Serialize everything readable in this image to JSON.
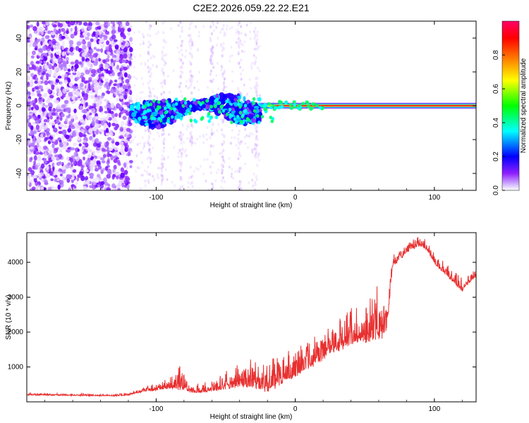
{
  "title": "C2E2.2026.059.22.22.E21",
  "chart_data": [
    {
      "type": "heatmap",
      "xlabel": "Height of straight line (km)",
      "ylabel": "Frequency (Hz)",
      "xlim": [
        -193,
        130
      ],
      "ylim": [
        -50,
        50
      ],
      "xticks": [
        -100,
        0,
        100
      ],
      "xtick_labels": [
        "-100",
        "0",
        "100"
      ],
      "yticks": [
        -40,
        -20,
        0,
        20,
        40
      ],
      "ytick_labels": [
        "-40",
        "-20",
        "0",
        "20",
        "40"
      ],
      "colorbar": {
        "label": "Normalized spectral amplitude",
        "range": [
          0,
          1
        ],
        "ticks": [
          0.0,
          0.2,
          0.4,
          0.6,
          0.8
        ],
        "tick_labels": [
          "0.0",
          "0.2",
          "0.4",
          "0.6",
          "0.8"
        ],
        "colormap": [
          "#ffffff",
          "#6600ff",
          "#0000ff",
          "#00ffff",
          "#00ff00",
          "#ffff00",
          "#ff6600",
          "#ff0000",
          "#ff0066"
        ]
      },
      "features": {
        "noise_region_km": [
          -193,
          -118
        ],
        "clustered_band_km": [
          -118,
          -25
        ],
        "converged_line_km": [
          -25,
          130
        ],
        "line_frequency_hz": 0
      }
    },
    {
      "type": "line",
      "xlabel": "Height of straight line (km)",
      "ylabel": "SNR (10 * v/v)",
      "xlim": [
        -193,
        130
      ],
      "ylim": [
        0,
        4850
      ],
      "xticks": [
        -100,
        0,
        100
      ],
      "xtick_labels": [
        "-100",
        "0",
        "100"
      ],
      "yticks": [
        1000,
        2000,
        3000,
        4000
      ],
      "ytick_labels": [
        "1000",
        "2000",
        "3000",
        "4000"
      ],
      "series": [
        {
          "name": "SNR",
          "color": "#e83030",
          "x": [
            -193,
            -170,
            -150,
            -130,
            -120,
            -110,
            -100,
            -90,
            -85,
            -80,
            -75,
            -70,
            -60,
            -50,
            -40,
            -30,
            -20,
            -10,
            0,
            10,
            20,
            30,
            40,
            50,
            60,
            65,
            67,
            70,
            80,
            90,
            95,
            100,
            110,
            120,
            125,
            130
          ],
          "base": [
            200,
            190,
            180,
            170,
            200,
            300,
            350,
            400,
            450,
            400,
            300,
            280,
            320,
            420,
            500,
            450,
            400,
            600,
            800,
            1050,
            1300,
            1550,
            1700,
            1850,
            1950,
            2000,
            2600,
            3900,
            4300,
            4500,
            4350,
            4000,
            3600,
            3200,
            3450,
            3600
          ],
          "amplitude": [
            60,
            60,
            60,
            60,
            80,
            150,
            200,
            300,
            700,
            800,
            300,
            250,
            300,
            500,
            700,
            800,
            900,
            900,
            900,
            850,
            800,
            850,
            1100,
            1300,
            1400,
            1200,
            500,
            300,
            300,
            300,
            300,
            300,
            350,
            400,
            350,
            300
          ]
        }
      ]
    }
  ]
}
